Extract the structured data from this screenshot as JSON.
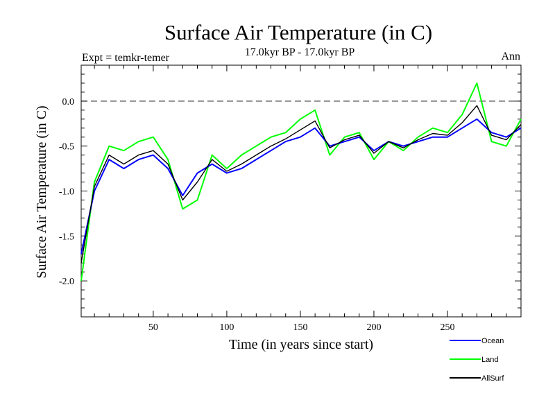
{
  "chart_data": {
    "type": "line",
    "title": "Surface Air Temperature (in C)",
    "subtitle": "17.0kyr BP - 17.0kyr BP",
    "left_label": "Expt = temkr-temer",
    "right_label": "Ann",
    "xlabel": "Time (in years since start)",
    "ylabel": "Surface Air Temperature (in C)",
    "xlim": [
      1,
      300
    ],
    "ylim": [
      -2.4,
      0.4
    ],
    "x_ticks": [
      50,
      100,
      150,
      200,
      250
    ],
    "x_tick_labels": [
      "50",
      "100",
      "150",
      "200",
      "250"
    ],
    "y_ticks": [
      0.0,
      -0.5,
      -1.0,
      -1.5,
      -2.0
    ],
    "y_tick_labels": [
      "0.0",
      "-0.5",
      "-1.0",
      "-1.5",
      "-2.0"
    ],
    "reference_line": {
      "y": 0.0,
      "style": "dashed"
    },
    "x": [
      1,
      10,
      20,
      30,
      40,
      50,
      60,
      70,
      80,
      90,
      100,
      110,
      120,
      130,
      140,
      150,
      160,
      170,
      180,
      190,
      200,
      210,
      220,
      230,
      240,
      250,
      260,
      270,
      280,
      290,
      300
    ],
    "series": [
      {
        "name": "Ocean",
        "color": "#0000ff",
        "values": [
          -1.7,
          -1.0,
          -0.65,
          -0.75,
          -0.65,
          -0.6,
          -0.75,
          -1.05,
          -0.8,
          -0.7,
          -0.8,
          -0.75,
          -0.65,
          -0.55,
          -0.45,
          -0.4,
          -0.3,
          -0.5,
          -0.45,
          -0.4,
          -0.55,
          -0.45,
          -0.5,
          -0.45,
          -0.4,
          -0.4,
          -0.3,
          -0.2,
          -0.35,
          -0.4,
          -0.3
        ]
      },
      {
        "name": "Land",
        "color": "#00ff00",
        "values": [
          -2.0,
          -0.9,
          -0.5,
          -0.55,
          -0.45,
          -0.4,
          -0.65,
          -1.2,
          -1.1,
          -0.6,
          -0.75,
          -0.6,
          -0.5,
          -0.4,
          -0.35,
          -0.2,
          -0.1,
          -0.6,
          -0.4,
          -0.35,
          -0.65,
          -0.45,
          -0.55,
          -0.4,
          -0.3,
          -0.35,
          -0.15,
          0.2,
          -0.45,
          -0.5,
          -0.2
        ]
      },
      {
        "name": "AllSurf",
        "color": "#000000",
        "values": [
          -1.8,
          -0.95,
          -0.6,
          -0.7,
          -0.6,
          -0.55,
          -0.7,
          -1.1,
          -0.9,
          -0.65,
          -0.78,
          -0.7,
          -0.6,
          -0.5,
          -0.42,
          -0.32,
          -0.22,
          -0.52,
          -0.43,
          -0.38,
          -0.58,
          -0.45,
          -0.52,
          -0.43,
          -0.36,
          -0.38,
          -0.24,
          -0.05,
          -0.38,
          -0.43,
          -0.26
        ]
      }
    ],
    "legend": [
      "Ocean",
      "Land",
      "AllSurf"
    ],
    "legend_position": "bottom-right"
  }
}
